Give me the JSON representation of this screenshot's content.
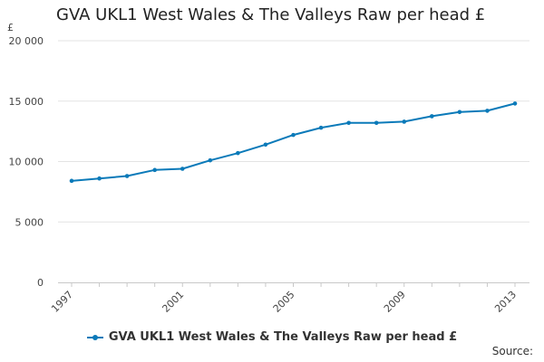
{
  "chart_data": {
    "type": "line",
    "title": "GVA UKL1 West Wales & The Valleys Raw per head £",
    "ylabel": "£",
    "xlabel": "",
    "x": [
      1997,
      1998,
      1999,
      2000,
      2001,
      2002,
      2003,
      2004,
      2005,
      2006,
      2007,
      2008,
      2009,
      2010,
      2011,
      2012,
      2013
    ],
    "x_tick_labels": [
      "1997",
      "2001",
      "2005",
      "2009",
      "2013"
    ],
    "y_ticks": [
      0,
      5000,
      10000,
      15000,
      20000
    ],
    "y_tick_labels": [
      "0",
      "5 000",
      "10 000",
      "15 000",
      "20 000"
    ],
    "ylim": [
      0,
      20000
    ],
    "grid": true,
    "legend_position": "bottom",
    "series": [
      {
        "name": "GVA UKL1 West Wales & The Valleys Raw per head £",
        "color": "#0b7ab9",
        "values": [
          8400,
          8600,
          8800,
          9300,
          9400,
          10100,
          10700,
          11400,
          12200,
          12800,
          13200,
          13200,
          13300,
          13750,
          14100,
          14200,
          14800
        ]
      }
    ]
  },
  "footer": {
    "source_label": "Source:"
  }
}
